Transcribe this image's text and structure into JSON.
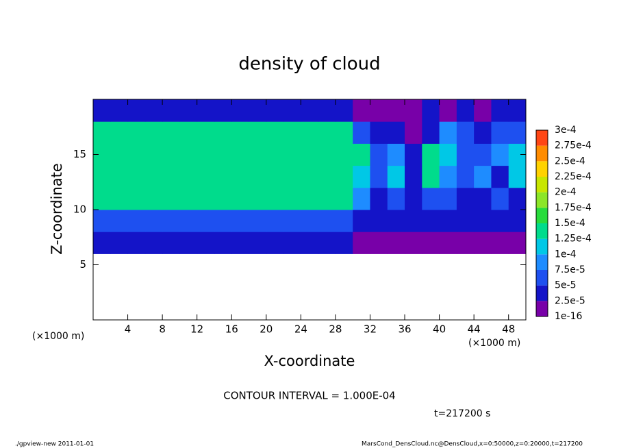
{
  "chart_data": {
    "type": "heatmap",
    "title": "density of cloud",
    "x_label": "X-coordinate",
    "y_label": "Z-coordinate",
    "x_unit": "(×1000 m)",
    "y_unit": "(×1000 m)",
    "xlim": [
      0,
      50
    ],
    "ylim": [
      0,
      20
    ],
    "xticks": [
      4,
      8,
      12,
      16,
      20,
      24,
      28,
      32,
      36,
      40,
      44,
      48
    ],
    "yticks": [
      5,
      10,
      15
    ],
    "x": [
      1,
      3,
      5,
      7,
      9,
      11,
      13,
      15,
      17,
      19,
      21,
      23,
      25,
      27,
      29,
      31,
      33,
      35,
      37,
      39,
      41,
      43,
      45,
      47,
      49
    ],
    "y": [
      7,
      9,
      11,
      13,
      15,
      17,
      19
    ],
    "values": [
      [
        3e-05,
        3e-05,
        3e-05,
        3e-05,
        3e-05,
        3e-05,
        3e-05,
        3e-05,
        3e-05,
        3e-05,
        3e-05,
        3e-05,
        3e-05,
        3e-05,
        3e-05,
        1e-05,
        1e-05,
        1e-05,
        1e-05,
        1e-05,
        1e-05,
        1e-05,
        1e-05,
        1e-05,
        1e-05
      ],
      [
        6e-05,
        6e-05,
        6e-05,
        6e-05,
        6e-05,
        6e-05,
        6e-05,
        6e-05,
        6e-05,
        6e-05,
        6e-05,
        6e-05,
        6e-05,
        6e-05,
        6e-05,
        3e-05,
        3e-05,
        3e-05,
        3e-05,
        3e-05,
        3e-05,
        3e-05,
        3e-05,
        3e-05,
        3e-05
      ],
      [
        0.00013,
        0.00013,
        0.00013,
        0.00013,
        0.00013,
        0.00013,
        0.00013,
        0.00013,
        0.00013,
        0.00013,
        0.00013,
        0.00013,
        0.00013,
        0.00013,
        0.00013,
        8e-05,
        4e-05,
        6e-05,
        3e-05,
        5e-05,
        7e-05,
        4e-05,
        3e-05,
        6e-05,
        4e-05
      ],
      [
        0.000145,
        0.000145,
        0.000145,
        0.000145,
        0.000145,
        0.000145,
        0.000145,
        0.000145,
        0.000145,
        0.000145,
        0.000145,
        0.000145,
        0.000145,
        0.000145,
        0.000145,
        0.00012,
        6e-05,
        0.0001,
        4e-05,
        0.00013,
        8e-05,
        5e-05,
        9e-05,
        4e-05,
        0.00011
      ],
      [
        0.000145,
        0.000145,
        0.000145,
        0.000145,
        0.000145,
        0.000145,
        0.000145,
        0.000145,
        0.000145,
        0.000145,
        0.000145,
        0.000145,
        0.000145,
        0.000145,
        0.000145,
        0.00013,
        5e-05,
        9e-05,
        4e-05,
        0.00013,
        0.00012,
        6e-05,
        5e-05,
        8e-05,
        0.00012
      ],
      [
        0.000135,
        0.000135,
        0.000135,
        0.000135,
        0.000135,
        0.000135,
        0.000135,
        0.000135,
        0.000135,
        0.000135,
        0.000135,
        0.000135,
        0.00013,
        0.00013,
        0.00013,
        7e-05,
        3e-05,
        4e-05,
        2e-05,
        4e-05,
        8e-05,
        5e-05,
        3e-05,
        6e-05,
        7e-05
      ],
      [
        3e-05,
        3e-05,
        3e-05,
        3e-05,
        3e-05,
        3e-05,
        3e-05,
        3e-05,
        3e-05,
        3e-05,
        3e-05,
        3e-05,
        3e-05,
        3e-05,
        3e-05,
        1e-05,
        1e-05,
        2e-05,
        1e-05,
        3e-05,
        2e-05,
        3e-05,
        2e-05,
        3e-05,
        3e-05
      ]
    ],
    "colorbar": {
      "levels": [
        {
          "value": 1e-16,
          "label": "1e-16"
        },
        {
          "value": 2.5e-05,
          "label": "2.5e-5"
        },
        {
          "value": 5e-05,
          "label": "5e-5"
        },
        {
          "value": 7.5e-05,
          "label": "7.5e-5"
        },
        {
          "value": 0.0001,
          "label": "1e-4"
        },
        {
          "value": 0.000125,
          "label": "1.25e-4"
        },
        {
          "value": 0.00015,
          "label": "1.5e-4"
        },
        {
          "value": 0.000175,
          "label": "1.75e-4"
        },
        {
          "value": 0.0002,
          "label": "2e-4"
        },
        {
          "value": 0.000225,
          "label": "2.25e-4"
        },
        {
          "value": 0.00025,
          "label": "2.5e-4"
        },
        {
          "value": 0.000275,
          "label": "2.75e-4"
        },
        {
          "value": 0.0003,
          "label": "3e-4"
        }
      ],
      "colors": [
        "#7800a8",
        "#1414c8",
        "#1e50f0",
        "#1e8cff",
        "#00c8e6",
        "#00dc8c",
        "#28dc3c",
        "#8ce628",
        "#c8e600",
        "#ffd200",
        "#ff8c00",
        "#ff4614",
        "#ff8c8c"
      ]
    },
    "contour_interval": "CONTOUR INTERVAL = 1.000E-04",
    "time": "t=217200 s",
    "footer_left": "./gpview-new  2011-01-01",
    "footer_right": "MarsCond_DensCloud.nc@DensCloud,x=0:50000,z=0:20000,t=217200"
  }
}
